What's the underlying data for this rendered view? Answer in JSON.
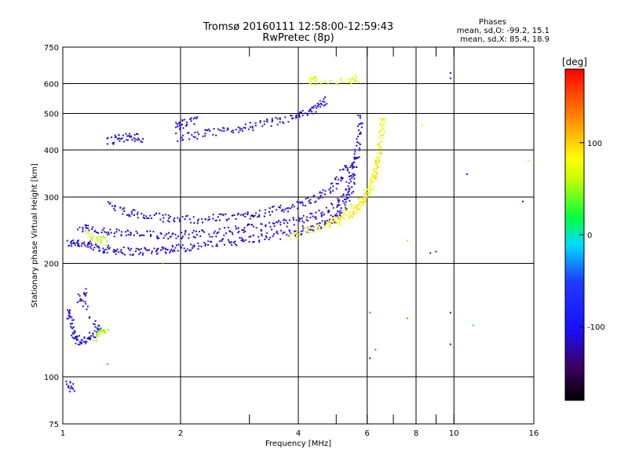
{
  "chart_data": {
    "type": "scatter",
    "title": "Tromsø 20160111 12:58:00-12:59:43",
    "subtitle": "RwPretec (8p)",
    "stats_header": "Phases",
    "stats_o": "mean, sd,O: -99.2, 15.1",
    "stats_x": "mean, sd,X: 85.4, 18.9",
    "xlabel": "Frequency [MHz]",
    "ylabel": "Stationary phase Virtual Height [km]",
    "x_scale": "log",
    "y_scale": "log",
    "xlim": [
      1,
      16
    ],
    "ylim": [
      75,
      750
    ],
    "x_ticks": [
      1,
      2,
      4,
      6,
      8,
      10,
      16
    ],
    "x_minor_ticks": [
      3,
      5,
      7,
      9
    ],
    "y_ticks": [
      75,
      100,
      200,
      300,
      400,
      500,
      600,
      750
    ],
    "grid": true,
    "colorbar": {
      "label": "[deg]",
      "range": [
        -180,
        180
      ],
      "ticks": [
        100,
        0,
        -100
      ]
    },
    "traces": [
      {
        "name": "",
        "points": [
          [
            1.03,
            225
          ],
          [
            1.08,
            228
          ],
          [
            1.15,
            224
          ],
          [
            1.22,
            220
          ],
          [
            1.3,
            218
          ],
          [
            1.4,
            216
          ],
          [
            1.55,
            215
          ],
          [
            1.7,
            216
          ],
          [
            1.85,
            218
          ],
          [
            2.0,
            220
          ],
          [
            2.2,
            222
          ],
          [
            2.5,
            226
          ],
          [
            2.8,
            229
          ],
          [
            3.1,
            233
          ],
          [
            3.5,
            237
          ],
          [
            3.9,
            242
          ],
          [
            4.3,
            248
          ],
          [
            4.7,
            256
          ],
          [
            5.0,
            266
          ],
          [
            5.3,
            285
          ],
          [
            5.5,
            320
          ],
          [
            5.65,
            380
          ],
          [
            5.72,
            440
          ],
          [
            5.77,
            500
          ]
        ],
        "phase": -105
      },
      {
        "name": "",
        "points": [
          [
            1.1,
            250
          ],
          [
            1.2,
            245
          ],
          [
            1.35,
            241
          ],
          [
            1.5,
            239
          ],
          [
            1.7,
            238
          ],
          [
            1.9,
            238
          ],
          [
            2.1,
            239
          ],
          [
            2.4,
            241
          ],
          [
            2.7,
            244
          ],
          [
            3.0,
            248
          ],
          [
            3.4,
            252
          ],
          [
            3.8,
            257
          ],
          [
            4.2,
            263
          ],
          [
            4.6,
            272
          ],
          [
            5.0,
            286
          ],
          [
            5.3,
            310
          ],
          [
            5.5,
            350
          ],
          [
            5.6,
            400
          ]
        ],
        "phase": -110
      },
      {
        "name": "",
        "points": [
          [
            1.3,
            285
          ],
          [
            1.45,
            275
          ],
          [
            1.6,
            268
          ],
          [
            1.8,
            264
          ],
          [
            2.0,
            262
          ],
          [
            2.3,
            262
          ],
          [
            2.6,
            265
          ],
          [
            2.9,
            268
          ],
          [
            3.2,
            272
          ],
          [
            3.6,
            278
          ],
          [
            4.0,
            286
          ],
          [
            4.4,
            296
          ],
          [
            4.8,
            312
          ],
          [
            5.1,
            335
          ],
          [
            5.35,
            370
          ]
        ],
        "phase": -115
      },
      {
        "name": "",
        "points": [
          [
            1.95,
            432
          ],
          [
            2.2,
            438
          ],
          [
            2.5,
            446
          ],
          [
            2.8,
            455
          ],
          [
            3.1,
            464
          ],
          [
            3.5,
            475
          ],
          [
            3.9,
            488
          ],
          [
            4.2,
            500
          ],
          [
            4.5,
            520
          ],
          [
            4.7,
            545
          ]
        ],
        "phase": -110
      },
      {
        "name": "",
        "points": [
          [
            1.95,
            462
          ],
          [
            2.05,
            470
          ],
          [
            2.2,
            480
          ]
        ],
        "phase": -112
      },
      {
        "name": "",
        "points": [
          [
            1.3,
            420
          ],
          [
            1.4,
            430
          ],
          [
            1.5,
            433
          ],
          [
            1.6,
            430
          ]
        ],
        "phase": -105
      },
      {
        "name": "",
        "points": [
          [
            3.8,
            236
          ],
          [
            4.2,
            243
          ],
          [
            4.6,
            252
          ],
          [
            5.0,
            262
          ],
          [
            5.4,
            276
          ],
          [
            5.8,
            292
          ],
          [
            6.1,
            315
          ],
          [
            6.3,
            350
          ],
          [
            6.45,
            400
          ],
          [
            6.55,
            450
          ],
          [
            6.6,
            490
          ]
        ],
        "phase": 80
      },
      {
        "name": "",
        "points": [
          [
            4.8,
            252
          ],
          [
            5.2,
            262
          ],
          [
            5.6,
            276
          ],
          [
            5.9,
            295
          ],
          [
            6.2,
            330
          ],
          [
            6.35,
            360
          ],
          [
            6.5,
            410
          ]
        ],
        "phase": 90
      },
      {
        "name": "",
        "points": [
          [
            1.15,
            240
          ],
          [
            1.22,
            232
          ],
          [
            1.3,
            228
          ]
        ],
        "phase": 60
      },
      {
        "name": "",
        "points": [
          [
            1.03,
            150
          ],
          [
            1.05,
            140
          ],
          [
            1.07,
            130
          ],
          [
            1.1,
            124
          ],
          [
            1.15,
            125
          ],
          [
            1.2,
            130
          ],
          [
            1.25,
            135
          ],
          [
            1.1,
            160
          ],
          [
            1.15,
            170
          ]
        ],
        "phase": -100
      },
      {
        "name": "",
        "points": [
          [
            1.2,
            127
          ],
          [
            1.25,
            131
          ],
          [
            1.3,
            135
          ]
        ],
        "phase": 55
      },
      {
        "name": "",
        "points": [
          [
            4.3,
            610
          ],
          [
            4.4,
            612
          ],
          [
            5.4,
            612
          ],
          [
            5.7,
            620
          ]
        ],
        "phase": 70
      },
      {
        "name": "",
        "points": [
          [
            1.06,
            92
          ],
          [
            1.03,
            96
          ]
        ],
        "phase": -110
      }
    ],
    "isolated_points": [
      {
        "x": 9.8,
        "y": 640,
        "phase": -120
      },
      {
        "x": 9.8,
        "y": 620,
        "phase": -120
      },
      {
        "x": 15.5,
        "y": 375,
        "phase": 60
      },
      {
        "x": 10.8,
        "y": 345,
        "phase": -100
      },
      {
        "x": 15.0,
        "y": 292,
        "phase": -110
      },
      {
        "x": 9.0,
        "y": 215,
        "phase": -110
      },
      {
        "x": 8.7,
        "y": 213,
        "phase": -110
      },
      {
        "x": 7.6,
        "y": 230,
        "phase": 100
      },
      {
        "x": 7.6,
        "y": 143,
        "phase": 140
      },
      {
        "x": 9.8,
        "y": 148,
        "phase": -110
      },
      {
        "x": 9.8,
        "y": 122,
        "phase": -110
      },
      {
        "x": 11.2,
        "y": 137,
        "phase": 0
      },
      {
        "x": 6.1,
        "y": 148,
        "phase": -30
      },
      {
        "x": 6.1,
        "y": 112,
        "phase": -110
      },
      {
        "x": 6.3,
        "y": 118,
        "phase": 150
      },
      {
        "x": 1.3,
        "y": 108,
        "phase": 140
      },
      {
        "x": 1.8,
        "y": 201,
        "phase": 60
      },
      {
        "x": 8.3,
        "y": 465,
        "phase": 90
      }
    ]
  }
}
